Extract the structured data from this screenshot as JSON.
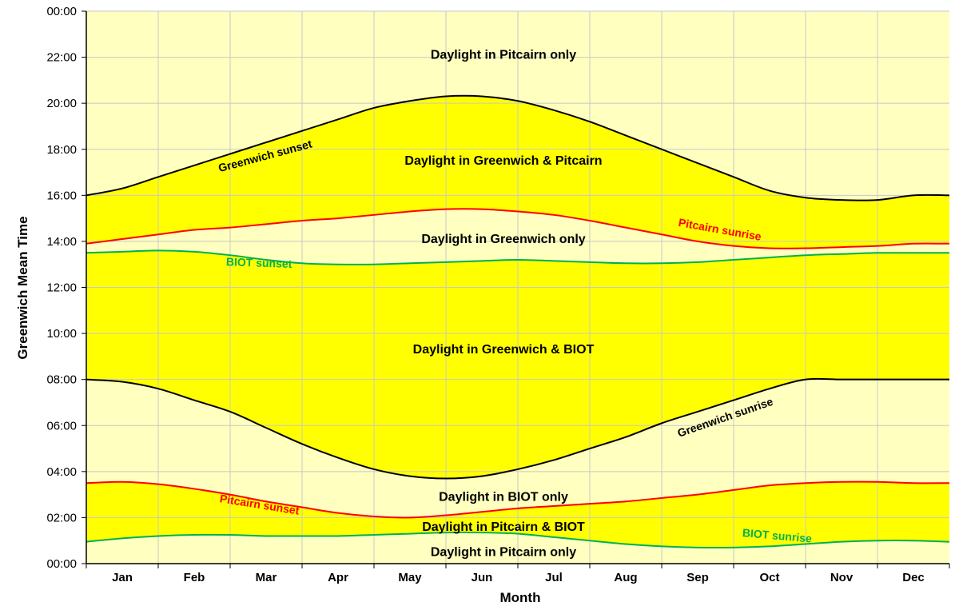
{
  "chart_data": {
    "type": "area",
    "xlabel": "Month",
    "ylabel": "Greenwich Mean Time",
    "xlim": [
      0,
      12
    ],
    "ylim": [
      0,
      24
    ],
    "categories": [
      "Jan",
      "Feb",
      "Mar",
      "Apr",
      "May",
      "Jun",
      "Jul",
      "Aug",
      "Sep",
      "Oct",
      "Nov",
      "Dec"
    ],
    "y_ticks": [
      "00:00",
      "02:00",
      "04:00",
      "06:00",
      "08:00",
      "10:00",
      "12:00",
      "14:00",
      "16:00",
      "18:00",
      "20:00",
      "22:00",
      "00:00"
    ],
    "grid": true,
    "colors": {
      "light_region": "#ffffc0",
      "dark_region": "#ffff00",
      "greenwich": "#000000",
      "pitcairn": "#ff0000",
      "biot": "#00b050",
      "grid": "#c8c8c8"
    },
    "series": [
      {
        "key": "greenwich_sunset",
        "name": "Greenwich sunset",
        "color": "#000000",
        "x": [
          0,
          0.5,
          1,
          1.5,
          2,
          2.5,
          3,
          3.5,
          4,
          4.5,
          5,
          5.5,
          6,
          6.5,
          7,
          7.5,
          8,
          8.5,
          9,
          9.5,
          10,
          10.5,
          11,
          11.5,
          12
        ],
        "y": [
          16.0,
          16.3,
          16.8,
          17.3,
          17.8,
          18.3,
          18.8,
          19.3,
          19.8,
          20.1,
          20.3,
          20.3,
          20.1,
          19.7,
          19.2,
          18.6,
          18.0,
          17.4,
          16.8,
          16.2,
          15.9,
          15.8,
          15.8,
          16.0,
          16.0
        ]
      },
      {
        "key": "pitcairn_sunrise",
        "name": "Pitcairn sunrise",
        "color": "#ff0000",
        "x": [
          0,
          0.5,
          1,
          1.5,
          2,
          2.5,
          3,
          3.5,
          4,
          4.5,
          5,
          5.5,
          6,
          6.5,
          7,
          7.5,
          8,
          8.5,
          9,
          9.5,
          10,
          10.5,
          11,
          11.5,
          12
        ],
        "y": [
          13.9,
          14.1,
          14.3,
          14.5,
          14.6,
          14.75,
          14.9,
          15.0,
          15.15,
          15.3,
          15.4,
          15.4,
          15.3,
          15.15,
          14.9,
          14.6,
          14.3,
          14.0,
          13.8,
          13.7,
          13.7,
          13.75,
          13.8,
          13.9,
          13.9
        ]
      },
      {
        "key": "biot_sunset",
        "name": "BIOT sunset",
        "color": "#00b050",
        "x": [
          0,
          0.5,
          1,
          1.5,
          2,
          2.5,
          3,
          3.5,
          4,
          4.5,
          5,
          5.5,
          6,
          6.5,
          7,
          7.5,
          8,
          8.5,
          9,
          9.5,
          10,
          10.5,
          11,
          11.5,
          12
        ],
        "y": [
          13.5,
          13.55,
          13.6,
          13.55,
          13.4,
          13.2,
          13.05,
          13.0,
          13.0,
          13.05,
          13.1,
          13.15,
          13.2,
          13.15,
          13.1,
          13.05,
          13.05,
          13.1,
          13.2,
          13.3,
          13.4,
          13.45,
          13.5,
          13.5,
          13.5
        ]
      },
      {
        "key": "greenwich_sunrise",
        "name": "Greenwich sunrise",
        "color": "#000000",
        "x": [
          0,
          0.5,
          1,
          1.5,
          2,
          2.5,
          3,
          3.5,
          4,
          4.5,
          5,
          5.5,
          6,
          6.5,
          7,
          7.5,
          8,
          8.5,
          9,
          9.5,
          10,
          10.5,
          11,
          11.5,
          12
        ],
        "y": [
          8.0,
          7.9,
          7.6,
          7.1,
          6.6,
          5.9,
          5.2,
          4.6,
          4.1,
          3.8,
          3.7,
          3.8,
          4.1,
          4.5,
          5.0,
          5.5,
          6.1,
          6.6,
          7.1,
          7.6,
          8.0,
          8.0,
          8.0,
          8.0,
          8.0
        ]
      },
      {
        "key": "pitcairn_sunset",
        "name": "Pitcairn sunset",
        "color": "#ff0000",
        "x": [
          0,
          0.5,
          1,
          1.5,
          2,
          2.5,
          3,
          3.5,
          4,
          4.5,
          5,
          5.5,
          6,
          6.5,
          7,
          7.5,
          8,
          8.5,
          9,
          9.5,
          10,
          10.5,
          11,
          11.5,
          12
        ],
        "y": [
          3.5,
          3.55,
          3.45,
          3.25,
          3.0,
          2.7,
          2.45,
          2.2,
          2.05,
          2.0,
          2.1,
          2.25,
          2.4,
          2.5,
          2.6,
          2.7,
          2.85,
          3.0,
          3.2,
          3.4,
          3.5,
          3.55,
          3.55,
          3.5,
          3.5
        ]
      },
      {
        "key": "biot_sunrise",
        "name": "BIOT sunrise",
        "color": "#00b050",
        "x": [
          0,
          0.5,
          1,
          1.5,
          2,
          2.5,
          3,
          3.5,
          4,
          4.5,
          5,
          5.5,
          6,
          6.5,
          7,
          7.5,
          8,
          8.5,
          9,
          9.5,
          10,
          10.5,
          11,
          11.5,
          12
        ],
        "y": [
          0.95,
          1.1,
          1.2,
          1.25,
          1.25,
          1.2,
          1.2,
          1.2,
          1.25,
          1.3,
          1.35,
          1.35,
          1.3,
          1.15,
          1.0,
          0.85,
          0.75,
          0.7,
          0.7,
          0.75,
          0.85,
          0.95,
          1.0,
          1.0,
          0.95
        ]
      }
    ],
    "region_labels": [
      {
        "text": "Daylight in Pitcairn only",
        "x": 5.8,
        "y": 22.1
      },
      {
        "text": "Daylight in Greenwich & Pitcairn",
        "x": 5.8,
        "y": 17.5
      },
      {
        "text": "Daylight in Greenwich only",
        "x": 5.8,
        "y": 14.1
      },
      {
        "text": "Daylight in Greenwich & BIOT",
        "x": 5.8,
        "y": 9.3
      },
      {
        "text": "Daylight in BIOT only",
        "x": 5.8,
        "y": 2.9
      },
      {
        "text": "Daylight in Pitcairn & BIOT",
        "x": 5.8,
        "y": 1.6
      },
      {
        "text": "Daylight in Pitcairn only",
        "x": 5.8,
        "y": 0.5
      }
    ],
    "curve_labels": [
      {
        "text": "Greenwich sunset",
        "series": "greenwich_sunset",
        "x": 2.5,
        "y": 17.55,
        "angle": -15
      },
      {
        "text": "Pitcairn sunrise",
        "series": "pitcairn_sunrise",
        "x": 8.8,
        "y": 14.35,
        "angle": 10
      },
      {
        "text": "BIOT sunset",
        "series": "biot_sunset",
        "x": 2.4,
        "y": 12.9,
        "angle": 2
      },
      {
        "text": "Greenwich sunrise",
        "series": "greenwich_sunrise",
        "x": 8.9,
        "y": 6.2,
        "angle": -19
      },
      {
        "text": "Pitcairn sunset",
        "series": "pitcairn_sunset",
        "x": 2.4,
        "y": 2.4,
        "angle": 9
      },
      {
        "text": "BIOT sunrise",
        "series": "biot_sunrise",
        "x": 9.6,
        "y": 1.05,
        "angle": 5
      }
    ]
  }
}
